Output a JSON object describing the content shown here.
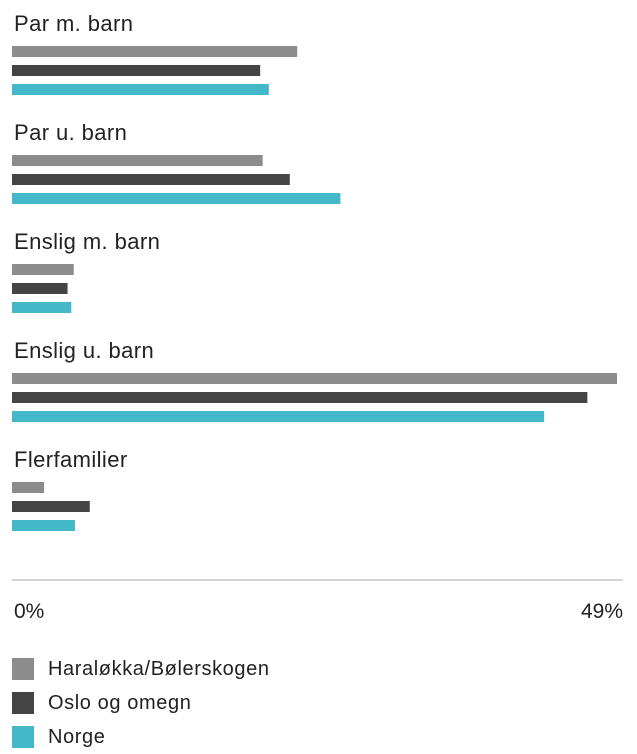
{
  "chart_data": {
    "type": "bar",
    "orientation": "horizontal",
    "categories": [
      "Par m. barn",
      "Par u. barn",
      "Enslig m. barn",
      "Enslig u. barn",
      "Flerfamilier"
    ],
    "series": [
      {
        "name": "Haraløkka/Bølerskogen",
        "color": "#8c8c8c",
        "values": [
          23.1,
          20.3,
          5.0,
          49.0,
          2.6
        ]
      },
      {
        "name": "Oslo og omegn",
        "color": "#444444",
        "values": [
          20.1,
          22.5,
          4.5,
          46.6,
          6.3
        ]
      },
      {
        "name": "Norge",
        "color": "#42b8c8",
        "values": [
          20.8,
          26.6,
          4.8,
          43.1,
          5.1
        ]
      }
    ],
    "xlim": [
      0,
      49
    ],
    "tick_labels": [
      "0%",
      "49%"
    ],
    "xlabel": "",
    "ylabel": "",
    "title": "",
    "legend_position": "bottom-left",
    "grid": false
  }
}
